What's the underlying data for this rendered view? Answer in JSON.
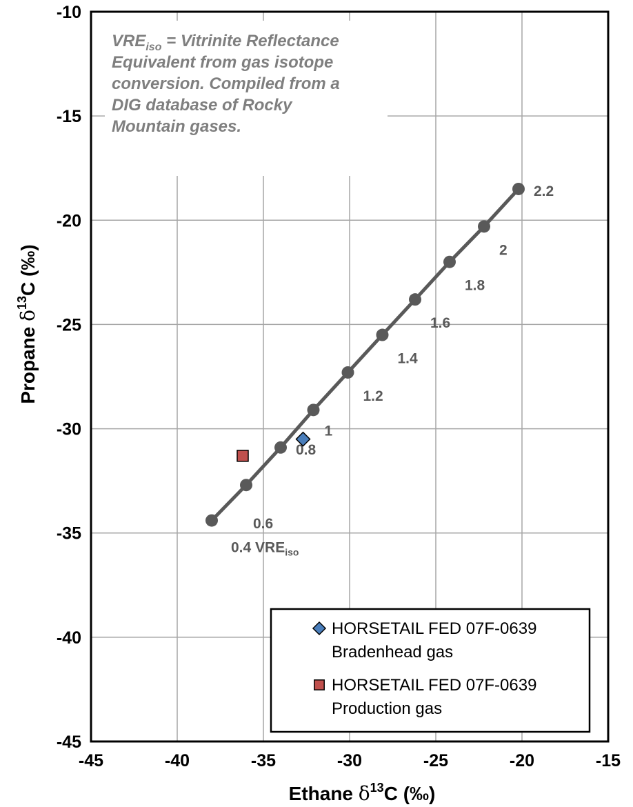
{
  "chart_data": {
    "type": "scatter",
    "title": "",
    "xlabel": {
      "prefix": "Ethane ",
      "delta": "δ",
      "sup": "13",
      "suffix": "C (‰)"
    },
    "ylabel": {
      "prefix": "Propane ",
      "delta": "δ",
      "sup": "13",
      "suffix": "C (‰)"
    },
    "xlim": [
      -45,
      -15
    ],
    "ylim": [
      -45,
      -10
    ],
    "xticks": [
      -45,
      -40,
      -35,
      -30,
      -25,
      -20,
      -15
    ],
    "yticks": [
      -45,
      -40,
      -35,
      -30,
      -25,
      -20,
      -15,
      -10
    ],
    "grid": true,
    "note": {
      "lines": [
        {
          "text": " = Vitrinite Reflectance",
          "lead": "VRE",
          "sub": "iso"
        },
        {
          "text": "Equivalent from gas isotope"
        },
        {
          "text": "conversion.  Compiled from a"
        },
        {
          "text": "DIG database of Rocky"
        },
        {
          "text": "Mountain  gases."
        }
      ]
    },
    "vre_line": {
      "color": "#595959",
      "points": [
        {
          "x": -38.0,
          "y": -34.4,
          "label": "0.4 VRE",
          "sub": "iso"
        },
        {
          "x": -36.0,
          "y": -32.7,
          "label": "0.6"
        },
        {
          "x": -34.0,
          "y": -30.9,
          "label": "0.8"
        },
        {
          "x": -32.1,
          "y": -29.1,
          "label": "1"
        },
        {
          "x": -30.1,
          "y": -27.3,
          "label": "1.2"
        },
        {
          "x": -28.1,
          "y": -25.5,
          "label": "1.4"
        },
        {
          "x": -26.2,
          "y": -23.8,
          "label": "1.6"
        },
        {
          "x": -24.2,
          "y": -22.0,
          "label": "1.8"
        },
        {
          "x": -22.2,
          "y": -20.3,
          "label": "2"
        },
        {
          "x": -20.2,
          "y": -18.5,
          "label": "2.2"
        }
      ]
    },
    "series": [
      {
        "name_line1": "HORSETAIL FED 07F-0639",
        "name_line2": "Bradenhead gas",
        "marker": "diamond",
        "color": "#4a7ebb",
        "x": -32.7,
        "y": -30.5
      },
      {
        "name_line1": "HORSETAIL FED 07F-0639",
        "name_line2": "Production gas",
        "marker": "square",
        "color": "#c0504d",
        "x": -36.2,
        "y": -31.3
      }
    ],
    "legend_position": "bottom-right"
  }
}
